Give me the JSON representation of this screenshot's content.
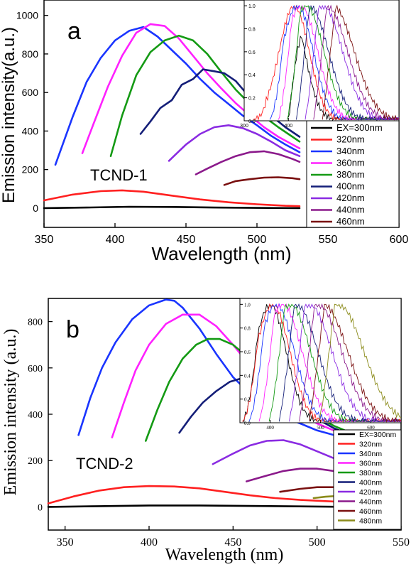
{
  "chart_data": [
    {
      "type": "line",
      "panel_label": "a",
      "annotation": "TCND-1",
      "xlabel": "Wavelength (nm)",
      "ylabel": "Emission intensity(a.u.)",
      "xlim": [
        350,
        600
      ],
      "ylim": [
        -100,
        1080
      ],
      "xticks": [
        350,
        400,
        450,
        500,
        550,
        600
      ],
      "yticks": [
        0,
        200,
        400,
        600,
        800,
        1000
      ],
      "legend_position": "bottom-right",
      "series": [
        {
          "name": "EX=300nm",
          "color": "#000000",
          "x": [
            350,
            380,
            410,
            440,
            470,
            500,
            530
          ],
          "y": [
            0,
            3,
            7,
            6,
            3,
            1,
            0
          ]
        },
        {
          "name": "320nm",
          "color": "#ff2020",
          "x": [
            350,
            370,
            390,
            405,
            420,
            440,
            460,
            480,
            500,
            520,
            530
          ],
          "y": [
            40,
            70,
            88,
            92,
            85,
            65,
            45,
            30,
            20,
            12,
            10
          ]
        },
        {
          "name": "340nm",
          "color": "#1a35ff",
          "x": [
            358,
            370,
            380,
            390,
            400,
            410,
            420,
            430,
            440,
            450,
            460,
            470,
            480,
            490,
            500,
            510,
            520,
            530
          ],
          "y": [
            225,
            470,
            655,
            780,
            870,
            920,
            940,
            890,
            820,
            750,
            670,
            600,
            540,
            480,
            430,
            375,
            330,
            290
          ]
        },
        {
          "name": "360nm",
          "color": "#ff20ff",
          "x": [
            377,
            385,
            395,
            405,
            415,
            425,
            435,
            445,
            455,
            465,
            475,
            485,
            495,
            505,
            515,
            525,
            530
          ],
          "y": [
            285,
            440,
            630,
            790,
            910,
            955,
            945,
            880,
            790,
            700,
            620,
            545,
            480,
            420,
            370,
            330,
            310
          ]
        },
        {
          "name": "380nm",
          "color": "#149a14",
          "x": [
            397,
            405,
            415,
            425,
            435,
            445,
            455,
            465,
            475,
            485,
            495,
            505,
            515,
            525,
            530
          ],
          "y": [
            270,
            480,
            690,
            810,
            870,
            895,
            870,
            800,
            705,
            615,
            540,
            475,
            420,
            370,
            345
          ]
        },
        {
          "name": "400nm",
          "color": "#141e78",
          "x": [
            418,
            425,
            432,
            440,
            447,
            455,
            462,
            470,
            477,
            485,
            492,
            500,
            510,
            520,
            530
          ],
          "y": [
            385,
            450,
            520,
            560,
            640,
            670,
            720,
            710,
            700,
            660,
            600,
            550,
            480,
            420,
            370
          ]
        },
        {
          "name": "420nm",
          "color": "#8a2be2",
          "x": [
            438,
            450,
            460,
            470,
            480,
            490,
            500,
            510,
            520,
            530
          ],
          "y": [
            245,
            330,
            385,
            420,
            430,
            415,
            385,
            345,
            300,
            270
          ]
        },
        {
          "name": "440nm",
          "color": "#8b1a8b",
          "x": [
            457,
            465,
            475,
            485,
            495,
            505,
            515,
            525,
            530
          ],
          "y": [
            175,
            205,
            240,
            270,
            290,
            295,
            280,
            255,
            240
          ]
        },
        {
          "name": "460nm",
          "color": "#7a1010",
          "x": [
            477,
            485,
            495,
            505,
            515,
            525,
            530
          ],
          "y": [
            120,
            140,
            150,
            158,
            160,
            155,
            150
          ]
        }
      ],
      "inset": {
        "xticks": [
          300,
          400,
          500,
          600
        ],
        "yticks": [
          0.0,
          0.2,
          0.4,
          0.6,
          0.8,
          1.0
        ],
        "xlim": [
          300,
          650
        ],
        "ylim": [
          0,
          1.05
        ],
        "peaks": [
          {
            "c": "#000000",
            "p": 405,
            "s": 400
          },
          {
            "c": "#ff2020",
            "p": 413,
            "s": 320
          },
          {
            "c": "#1a35ff",
            "p": 420,
            "s": 358
          },
          {
            "c": "#ff20ff",
            "p": 428,
            "s": 377
          },
          {
            "c": "#149a14",
            "p": 440,
            "s": 397
          },
          {
            "c": "#141e78",
            "p": 448,
            "s": 418
          },
          {
            "c": "#8a2be2",
            "p": 478,
            "s": 438
          },
          {
            "c": "#8b1a8b",
            "p": 487,
            "s": 457
          },
          {
            "c": "#7a1010",
            "p": 500,
            "s": 477
          }
        ]
      }
    },
    {
      "type": "line",
      "panel_label": "b",
      "annotation": "TCND-2",
      "xlabel": "Wavelength (nm)",
      "ylabel": "Emission intensity (a.u.)",
      "xlim": [
        340,
        550
      ],
      "ylim": [
        -100,
        900
      ],
      "xticks": [
        350,
        400,
        450,
        500,
        550
      ],
      "yticks": [
        0,
        200,
        400,
        600,
        800
      ],
      "legend_position": "bottom-right",
      "series": [
        {
          "name": "EX=300nm",
          "color": "#000000",
          "x": [
            340,
            370,
            400,
            430,
            460,
            490,
            520
          ],
          "y": [
            0,
            3,
            6,
            6,
            4,
            2,
            0
          ]
        },
        {
          "name": "320nm",
          "color": "#ff2020",
          "x": [
            340,
            355,
            370,
            385,
            400,
            415,
            430,
            445,
            460,
            475,
            490,
            505,
            520
          ],
          "y": [
            15,
            45,
            70,
            85,
            90,
            88,
            80,
            65,
            50,
            38,
            30,
            25,
            20
          ]
        },
        {
          "name": "340nm",
          "color": "#1a35ff",
          "x": [
            358,
            365,
            372,
            380,
            390,
            400,
            410,
            415,
            420,
            430,
            440,
            450,
            460,
            470,
            480,
            490,
            500,
            510,
            520,
            530
          ],
          "y": [
            310,
            470,
            600,
            710,
            810,
            870,
            895,
            890,
            860,
            770,
            660,
            560,
            490,
            430,
            390,
            360,
            330,
            310,
            290,
            270
          ]
        },
        {
          "name": "360nm",
          "color": "#ff20ff",
          "x": [
            378,
            385,
            392,
            400,
            410,
            420,
            430,
            440,
            450,
            460,
            470,
            480,
            490,
            500,
            510,
            520,
            530
          ],
          "y": [
            300,
            450,
            590,
            700,
            790,
            830,
            830,
            780,
            700,
            610,
            530,
            450,
            400,
            360,
            330,
            300,
            280
          ]
        },
        {
          "name": "380nm",
          "color": "#149a14",
          "x": [
            398,
            405,
            412,
            420,
            428,
            435,
            442,
            450,
            460,
            470,
            480,
            490,
            500,
            510,
            520,
            530
          ],
          "y": [
            285,
            420,
            540,
            640,
            700,
            725,
            725,
            700,
            640,
            570,
            500,
            440,
            390,
            350,
            320,
            300
          ]
        },
        {
          "name": "400nm",
          "color": "#141e78",
          "x": [
            418,
            425,
            432,
            440,
            448,
            455,
            462,
            470,
            480,
            490,
            500,
            510,
            520,
            530
          ],
          "y": [
            320,
            390,
            450,
            500,
            540,
            555,
            545,
            520,
            470,
            420,
            380,
            340,
            310,
            290
          ]
        },
        {
          "name": "420nm",
          "color": "#8a2be2",
          "x": [
            438,
            450,
            460,
            470,
            480,
            490,
            500,
            510,
            520
          ],
          "y": [
            185,
            230,
            265,
            285,
            288,
            270,
            240,
            210,
            190
          ]
        },
        {
          "name": "440nm",
          "color": "#8b1a8b",
          "x": [
            458,
            470,
            480,
            490,
            500,
            510,
            520
          ],
          "y": [
            110,
            135,
            155,
            165,
            165,
            155,
            140
          ]
        },
        {
          "name": "460nm",
          "color": "#7a1010",
          "x": [
            478,
            490,
            500,
            510,
            520
          ],
          "y": [
            65,
            78,
            85,
            85,
            80
          ]
        },
        {
          "name": "480nm",
          "color": "#8b8b1a",
          "x": [
            498,
            505,
            512,
            520
          ],
          "y": [
            38,
            44,
            47,
            45
          ]
        }
      ],
      "inset": {
        "xticks": [
          400,
          500,
          600
        ],
        "yticks": [
          0.0,
          0.2,
          0.4,
          0.6,
          0.8,
          1.0
        ],
        "xlim": [
          340,
          660
        ],
        "ylim": [
          0,
          1.05
        ],
        "peaks": [
          {
            "c": "#000000",
            "p": 400,
            "s": 345
          },
          {
            "c": "#ff2020",
            "p": 405,
            "s": 345
          },
          {
            "c": "#1a35ff",
            "p": 412,
            "s": 358
          },
          {
            "c": "#ff20ff",
            "p": 425,
            "s": 378
          },
          {
            "c": "#149a14",
            "p": 440,
            "s": 398
          },
          {
            "c": "#141e78",
            "p": 452,
            "s": 418
          },
          {
            "c": "#8a2be2",
            "p": 478,
            "s": 438
          },
          {
            "c": "#8b1a8b",
            "p": 495,
            "s": 458
          },
          {
            "c": "#7a1010",
            "p": 505,
            "s": 478
          },
          {
            "c": "#8b8b1a",
            "p": 535,
            "s": 498
          }
        ]
      }
    }
  ]
}
